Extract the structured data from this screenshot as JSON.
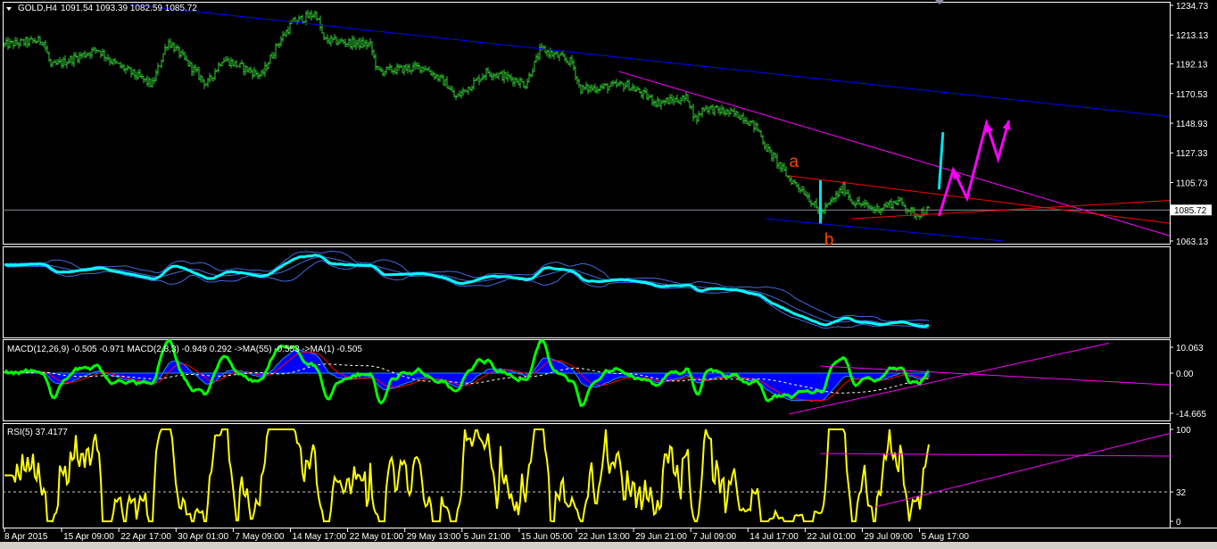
{
  "header": {
    "symbol": "GOLD,H4",
    "ohlc": "1091.54 1093.39 1082.59 1085.72"
  },
  "colors": {
    "bars": "#32cd32",
    "channel": "#0000ff",
    "wedge": "#ff00ff",
    "triangle": "#ff0000",
    "marker": "#00e5ee",
    "rsi": "#ffff00",
    "macd_fast": "#00ff00",
    "macd_fill": "#0000ff"
  },
  "chart_data": [
    {
      "type": "ohlc",
      "panel": "main",
      "price_axis": [
        "1234.73",
        "1213.13",
        "1192.13",
        "1170.53",
        "1148.93",
        "1127.33",
        "1105.73",
        "1085.72",
        "1063.13"
      ],
      "current_price": "1085.72",
      "ylim": [
        1063.13,
        1234.73
      ],
      "time_axis": [
        {
          "label": "8 Apr 2015",
          "t": "2015-04-08T00:00"
        },
        {
          "label": "15 Apr 09:00",
          "t": "2015-04-15T09:00"
        },
        {
          "label": "22 Apr 17:00",
          "t": "2015-04-22T17:00"
        },
        {
          "label": "30 Apr 01:00",
          "t": "2015-04-30T01:00"
        },
        {
          "label": "7 May 09:00",
          "t": "2015-05-07T09:00"
        },
        {
          "label": "14 May 17:00",
          "t": "2015-05-14T17:00"
        },
        {
          "label": "22 May 01:00",
          "t": "2015-05-22T01:00"
        },
        {
          "label": "29 May 13:00",
          "t": "2015-05-29T13:00"
        },
        {
          "label": "5 Jun 21:00",
          "t": "2015-06-05T21:00"
        },
        {
          "label": "15 Jun 05:00",
          "t": "2015-06-15T05:00"
        },
        {
          "label": "22 Jun 13:00",
          "t": "2015-06-22T13:00"
        },
        {
          "label": "29 Jun 21:00",
          "t": "2015-06-29T21:00"
        },
        {
          "label": "7 Jul 09:00",
          "t": "2015-07-07T09:00"
        },
        {
          "label": "14 Jul 17:00",
          "t": "2015-07-14T17:00"
        },
        {
          "label": "22 Jul 01:00",
          "t": "2015-07-22T01:00"
        },
        {
          "label": "29 Jul 09:00",
          "t": "2015-07-29T09:00"
        },
        {
          "label": "5 Aug 17:00",
          "t": "2015-08-05T17:00"
        }
      ],
      "price_path": [
        [
          "2015-04-08",
          1206
        ],
        [
          "2015-04-13",
          1209.4
        ],
        [
          "2015-04-14",
          1189.9
        ],
        [
          "2015-04-20",
          1202.9
        ],
        [
          "2015-04-22",
          1193
        ],
        [
          "2015-04-27",
          1176.9
        ],
        [
          "2015-04-29",
          1209
        ],
        [
          "2015-05-04",
          1176.9
        ],
        [
          "2015-05-06",
          1196
        ],
        [
          "2015-05-11",
          1183.4
        ],
        [
          "2015-05-13",
          1206
        ],
        [
          "2015-05-15",
          1222.4
        ],
        [
          "2015-05-18",
          1228.9
        ],
        [
          "2015-05-19",
          1209.4
        ],
        [
          "2015-05-25",
          1206
        ],
        [
          "2015-05-26",
          1186.6
        ],
        [
          "2015-06-01",
          1190
        ],
        [
          "2015-06-04",
          1176.9
        ],
        [
          "2015-06-05",
          1167.1
        ],
        [
          "2015-06-10",
          1186.6
        ],
        [
          "2015-06-15",
          1180
        ],
        [
          "2015-06-16",
          1176.9
        ],
        [
          "2015-06-18",
          1202.9
        ],
        [
          "2015-06-22",
          1193
        ],
        [
          "2015-06-23",
          1173.6
        ],
        [
          "2015-06-29",
          1176.9
        ],
        [
          "2015-06-30",
          1173.6
        ],
        [
          "2015-07-03",
          1163.9
        ],
        [
          "2015-07-07",
          1167.1
        ],
        [
          "2015-07-08",
          1150.9
        ],
        [
          "2015-07-09",
          1160.6
        ],
        [
          "2015-07-14",
          1154.1
        ],
        [
          "2015-07-16",
          1144.4
        ],
        [
          "2015-07-17",
          1131.4
        ],
        [
          "2015-07-20",
          1108.6
        ],
        [
          "2015-07-22",
          1098.9
        ],
        [
          "2015-07-24",
          1082.6
        ],
        [
          "2015-07-27",
          1102.3
        ],
        [
          "2015-07-28",
          1092.4
        ],
        [
          "2015-07-31",
          1086
        ],
        [
          "2015-08-03",
          1092.4
        ],
        [
          "2015-08-05",
          1082.6
        ],
        [
          "2015-08-07",
          1085.72
        ]
      ],
      "trendlines": [
        {
          "name": "channel-top",
          "color": "#0000ff",
          "p1": [
            "2015-04-24",
            1235.4
          ],
          "p2": [
            "2015-08-05",
            1173.8
          ],
          "ray": true
        },
        {
          "name": "channel-bottom",
          "color": "#0000ff",
          "p1": [
            "2015-07-17",
            1079.4
          ],
          "p2": [
            "2015-08-16T12:00",
            1063.1
          ],
          "ray": false
        },
        {
          "name": "wedge-top",
          "color": "#ff00ff",
          "p1": [
            "2015-06-28",
            1186.6
          ],
          "p2": [
            "2015-08-05",
            1122.5
          ],
          "ray": true
        },
        {
          "name": "triangle-top",
          "color": "#ff0000",
          "p1": [
            "2015-07-20",
            1110.6
          ],
          "p2": [
            "2015-08-05",
            1099.3
          ],
          "ray": true
        },
        {
          "name": "triangle-bottom",
          "color": "#ff0000",
          "p1": [
            "2015-07-28",
            1079.4
          ],
          "p2": [
            "2015-08-05",
            1082
          ],
          "ray": true
        }
      ],
      "markers": [
        {
          "name": "marker-b-leg",
          "color": "#00e5ee",
          "p1": [
            "2015-07-24",
            1107.3
          ],
          "p2": [
            "2015-07-24",
            1075.9
          ]
        },
        {
          "name": "marker-breakout",
          "color": "#00e5ee",
          "p1": [
            "2015-08-08T05:00",
            1100.8
          ],
          "p2": [
            "2015-08-08T17:00",
            1142.4
          ]
        }
      ],
      "projection": [
        [
          "2015-08-08T05:00",
          1081.3
        ],
        [
          "2015-08-10T01:00",
          1114.9
        ],
        [
          "2015-08-11T19:00",
          1094.3
        ],
        [
          "2015-08-14T07:00",
          1148.9
        ],
        [
          "2015-08-15T19:00",
          1122.9
        ],
        [
          "2015-08-17T04:00",
          1150.9
        ]
      ],
      "annotations": [
        {
          "text": "a",
          "t": "2015-07-20",
          "price": 1121
        },
        {
          "text": "b",
          "t": "2015-07-24T12:00",
          "price": 1064
        }
      ]
    },
    {
      "type": "line",
      "panel": "bands"
    },
    {
      "type": "line",
      "panel": "macd",
      "legend": "MACD(12,26,9) -0.505 -0.971  MACD(2,8,3) -0.949 0.292  ->MA(55) -0.553  ->MA(1) -0.505",
      "axis": [
        "10.063",
        "0.00",
        "-14.665"
      ],
      "ylim": [
        -14.665,
        10.063
      ],
      "trendlines": [
        {
          "color": "#ff00ff",
          "p1": [
            "2015-07-24",
            2.7
          ],
          "p2": [
            "2015-09-07",
            -4.5
          ]
        },
        {
          "color": "#ff00ff",
          "p1": [
            "2015-07-20",
            -15.5
          ],
          "p2": [
            "2015-08-30",
            11.4
          ]
        }
      ]
    },
    {
      "type": "line",
      "panel": "rsi",
      "legend": "RSI(5) 37.4177",
      "axis": [
        "100",
        "32",
        "0"
      ],
      "ylim": [
        0,
        100
      ],
      "level": 32,
      "trendlines": [
        {
          "color": "#ff00ff",
          "p1": [
            "2015-07-24",
            73.8
          ],
          "p2": [
            "2015-09-07",
            70.9
          ]
        },
        {
          "color": "#ff00ff",
          "p1": [
            "2015-07-31",
            15.5
          ],
          "p2": [
            "2015-09-07",
            96.1
          ]
        }
      ]
    }
  ]
}
